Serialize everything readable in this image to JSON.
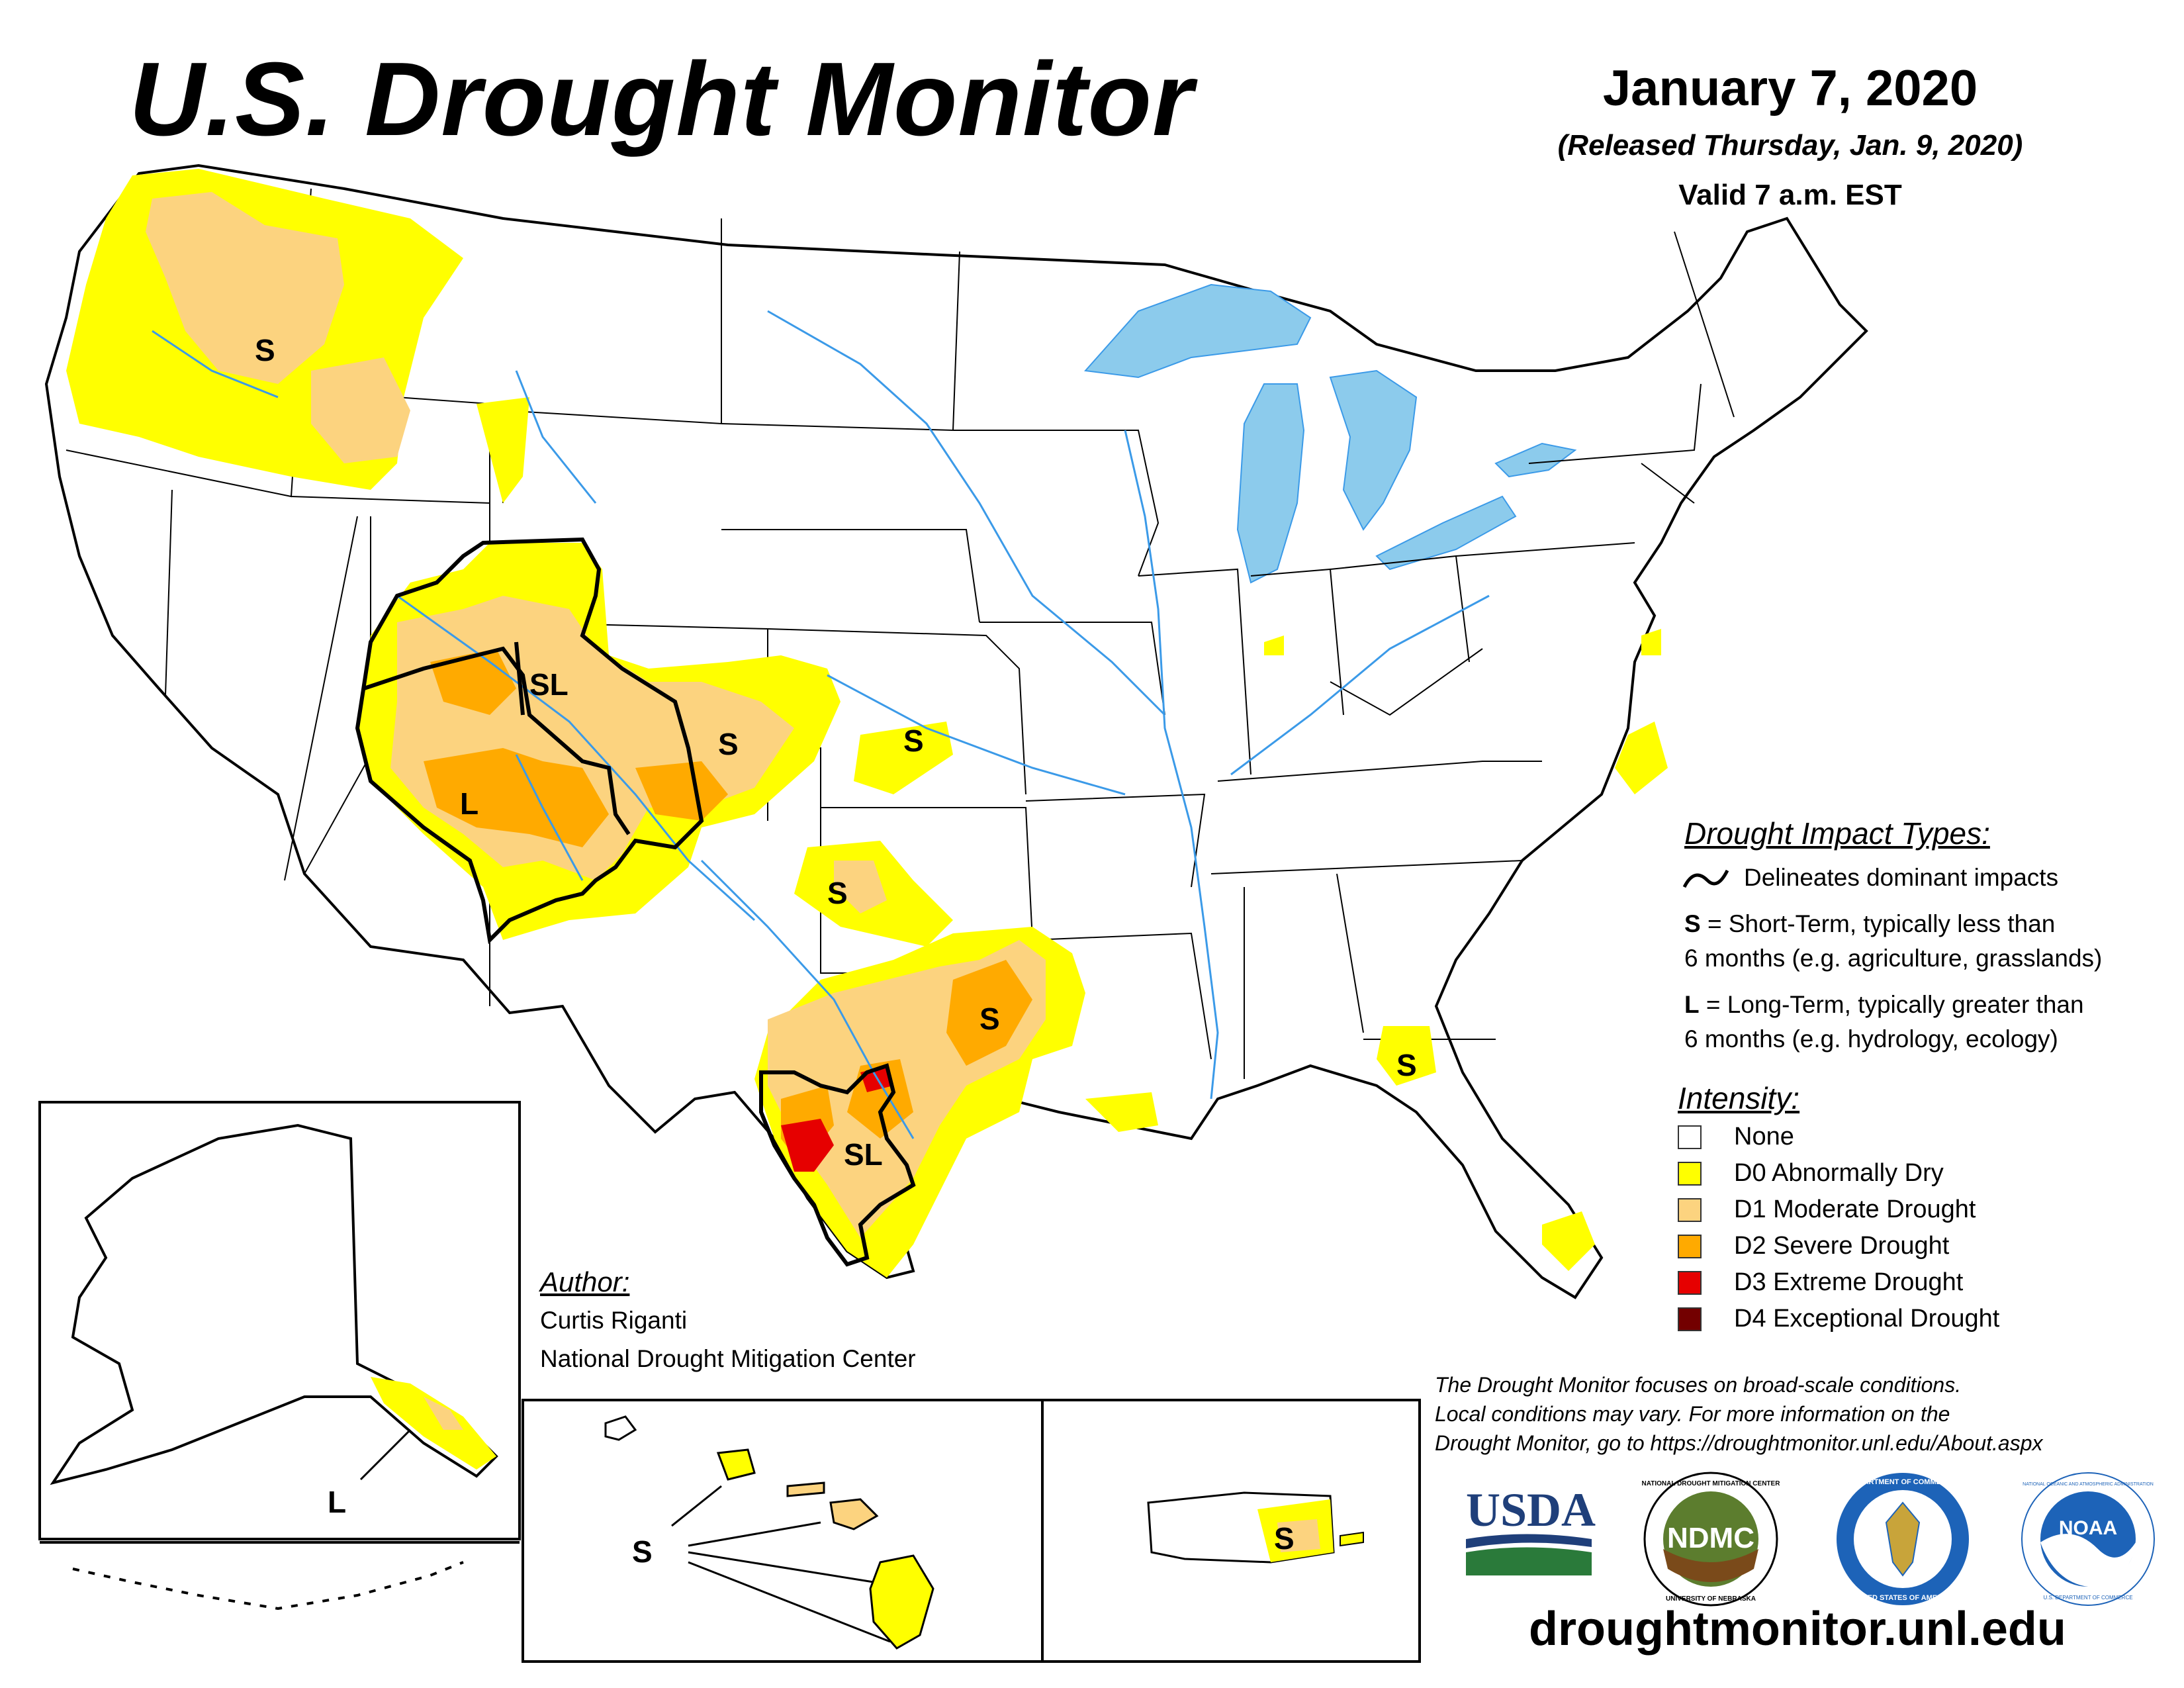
{
  "header": {
    "title": "U.S. Drought Monitor",
    "date": "January 7, 2020",
    "released": "(Released Thursday, Jan. 9, 2020)",
    "valid": "Valid 7 a.m. EST"
  },
  "impact_legend": {
    "heading": "Drought Impact Types:",
    "delineates": "Delineates dominant impacts",
    "s_line1_key": "S",
    "s_line1_rest": " = Short-Term, typically less than",
    "s_line2": "6 months (e.g. agriculture, grasslands)",
    "l_line1_key": "L",
    "l_line1_rest": " = Long-Term, typically greater than",
    "l_line2": "6 months (e.g. hydrology, ecology)"
  },
  "intensity_legend": {
    "heading": "Intensity:",
    "items": [
      {
        "label": "None",
        "color": "#ffffff"
      },
      {
        "label": "D0 Abnormally Dry",
        "color": "#ffff00"
      },
      {
        "label": "D1 Moderate Drought",
        "color": "#fcd37f"
      },
      {
        "label": "D2 Severe Drought",
        "color": "#ffaa00"
      },
      {
        "label": "D3 Extreme Drought",
        "color": "#e60000"
      },
      {
        "label": "D4 Exceptional Drought",
        "color": "#730000"
      }
    ]
  },
  "author": {
    "heading": "Author:",
    "name": "Curtis Riganti",
    "organization": "National Drought Mitigation Center"
  },
  "disclaimer": {
    "line1": "The Drought Monitor focuses on broad-scale conditions.",
    "line2": "Local conditions may vary. For more information on the",
    "line3": "Drought Monitor, go to https://droughtmonitor.unl.edu/About.aspx"
  },
  "website": "droughtmonitor.unl.edu",
  "logos": {
    "usda": "USDA",
    "ndmc": "NDMC",
    "ndmc_ring_top": "NATIONAL DROUGHT MITIGATION CENTER",
    "ndmc_ring_bottom": "UNIVERSITY OF NEBRASKA",
    "commerce_ring_top": "DEPARTMENT OF COMMERCE",
    "commerce_ring_bottom": "UNITED STATES OF AMERICA",
    "noaa": "NOAA",
    "noaa_ring_top": "NATIONAL OCEANIC AND ATMOSPHERIC ADMINISTRATION",
    "noaa_ring_bottom": "U.S. DEPARTMENT OF COMMERCE"
  },
  "map_labels": {
    "oregon": "S",
    "utah_colorado": "SL",
    "arizona": "L",
    "colorado_east": "S",
    "kansas": "S",
    "oklahoma": "S",
    "east_texas": "S",
    "south_texas": "SL",
    "florida": "S",
    "alaska": "L",
    "hawaii": "S",
    "puerto_rico": "S"
  },
  "colors": {
    "d0": "#ffff00",
    "d1": "#fcd37f",
    "d2": "#ffaa00",
    "d3": "#e60000",
    "water": "#8ccbec",
    "river": "#3b9ae8"
  }
}
